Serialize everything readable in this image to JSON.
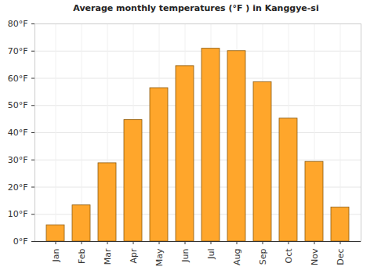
{
  "chart_data": {
    "type": "bar",
    "title": "Average monthly temperatures (°F ) in Kanggye-si",
    "categories": [
      "Jan",
      "Feb",
      "Mar",
      "Apr",
      "May",
      "Jun",
      "Jul",
      "Aug",
      "Sep",
      "Oct",
      "Nov",
      "Dec"
    ],
    "values": [
      6.0,
      13.3,
      28.8,
      44.7,
      56.4,
      64.5,
      70.9,
      70.0,
      58.6,
      45.2,
      29.3,
      12.5
    ],
    "color": "#ffa62b",
    "ylim": [
      0,
      80
    ],
    "yticks": [
      {
        "value": 0,
        "label": "0°F"
      },
      {
        "value": 10,
        "label": "10°F"
      },
      {
        "value": 20,
        "label": "20°F"
      },
      {
        "value": 30,
        "label": "30°F"
      },
      {
        "value": 40,
        "label": "40°F"
      },
      {
        "value": 50,
        "label": "50°F"
      },
      {
        "value": 60,
        "label": "60°F"
      },
      {
        "value": 70,
        "label": "70°F"
      },
      {
        "value": 80,
        "label": "80°F"
      }
    ],
    "grid": true
  }
}
